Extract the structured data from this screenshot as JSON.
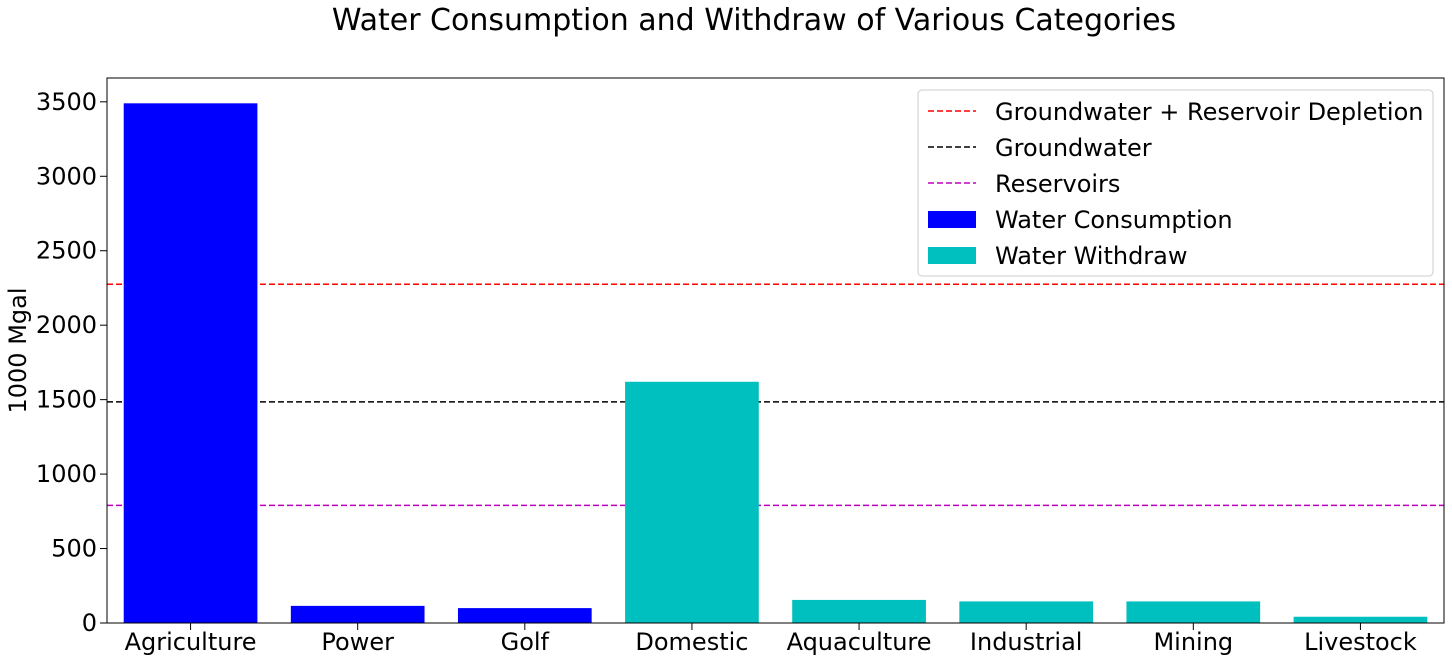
{
  "chart_data": {
    "type": "bar",
    "title": "Water Consumption and Withdraw of Various Categories",
    "xlabel": "",
    "ylabel": "1000 Mgal",
    "ylim": [
      0,
      3660
    ],
    "yticks": [
      0,
      500,
      1000,
      1500,
      2000,
      2500,
      3000,
      3500
    ],
    "grid": false,
    "legend_position": "top-right",
    "categories": [
      "Agriculture",
      "Power",
      "Golf",
      "Domestic",
      "Aquaculture",
      "Industrial",
      "Mining",
      "Livestock"
    ],
    "series": [
      {
        "name": "Water Consumption",
        "color": "#0000ff",
        "values": [
          3490,
          115,
          100,
          null,
          null,
          null,
          null,
          null
        ]
      },
      {
        "name": "Water Withdraw",
        "color": "#00bfbf",
        "values": [
          null,
          null,
          null,
          1620,
          155,
          145,
          145,
          42
        ]
      }
    ],
    "reference_lines": [
      {
        "name": "Groundwater + Reservoir Depletion",
        "value": 2275,
        "color": "#ff0000",
        "style": "dashed"
      },
      {
        "name": "Groundwater",
        "value": 1485,
        "color": "#000000",
        "style": "dashed"
      },
      {
        "name": "Reservoirs",
        "value": 790,
        "color": "#bf00bf",
        "style": "dashed"
      }
    ]
  }
}
